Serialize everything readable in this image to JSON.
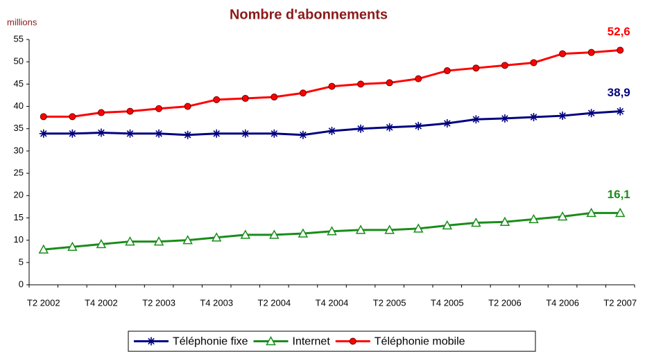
{
  "chart_data": {
    "type": "line",
    "title": "Nombre d'abonnements",
    "y_label": "millions",
    "categories": [
      "T2 2002",
      null,
      "T4 2002",
      null,
      "T2 2003",
      null,
      "T4 2003",
      null,
      "T2 2004",
      null,
      "T4 2004",
      null,
      "T2 2005",
      null,
      "T4 2005",
      null,
      "T2 2006",
      null,
      "T4 2006",
      null,
      "T2 2007"
    ],
    "series": [
      {
        "name": "Téléphonie fixe",
        "color": "#000080",
        "marker": "asterisk",
        "values": [
          33.9,
          33.9,
          34.1,
          33.9,
          33.9,
          33.6,
          33.9,
          33.9,
          33.9,
          33.6,
          34.5,
          35.0,
          35.3,
          35.6,
          36.2,
          37.1,
          37.3,
          37.6,
          37.9,
          38.5,
          38.9
        ],
        "value_labels": [
          null,
          null,
          null,
          null,
          null,
          null,
          null,
          null,
          null,
          null,
          null,
          null,
          null,
          null,
          null,
          null,
          null,
          null,
          null,
          null,
          "38,9"
        ]
      },
      {
        "name": "Internet",
        "color": "#1a8c1a",
        "marker": "triangle",
        "values": [
          7.9,
          8.5,
          9.1,
          9.7,
          9.7,
          10.0,
          10.6,
          11.2,
          11.2,
          11.5,
          12.0,
          12.3,
          12.3,
          12.6,
          13.3,
          13.9,
          14.1,
          14.7,
          15.3,
          16.1,
          16.1
        ],
        "value_labels": [
          null,
          null,
          null,
          null,
          null,
          null,
          null,
          null,
          null,
          null,
          null,
          null,
          null,
          null,
          null,
          null,
          null,
          null,
          null,
          null,
          "16,1"
        ]
      },
      {
        "name": "Téléphonie mobile",
        "color": "#ff0000",
        "marker": "circle",
        "values": [
          37.7,
          37.7,
          38.6,
          38.9,
          39.5,
          40.0,
          41.5,
          41.8,
          42.1,
          43.0,
          44.5,
          45.0,
          45.3,
          46.2,
          48.0,
          48.6,
          49.2,
          49.8,
          51.8,
          52.1,
          52.6
        ],
        "value_labels": [
          null,
          null,
          null,
          null,
          null,
          null,
          null,
          null,
          null,
          null,
          null,
          null,
          null,
          null,
          null,
          null,
          null,
          null,
          null,
          null,
          "52,6"
        ]
      }
    ],
    "ylim": [
      0,
      55
    ],
    "yticks": [
      0,
      5,
      10,
      15,
      20,
      25,
      30,
      35,
      40,
      45,
      50,
      55
    ],
    "grid": false,
    "legend": "bottom"
  }
}
